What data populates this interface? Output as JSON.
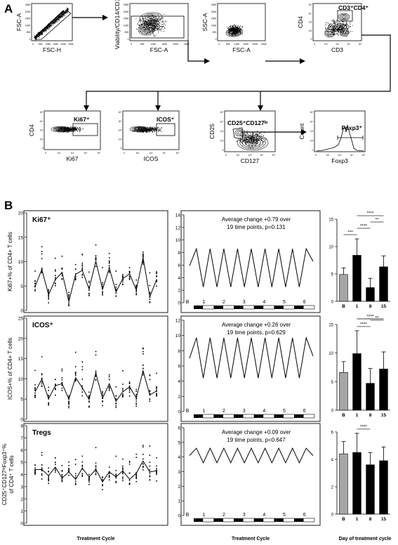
{
  "panel_a": {
    "letter": "A",
    "plots": [
      {
        "xlabel": "FSC-H",
        "ylabel": "FSC-A",
        "gate_label": ""
      },
      {
        "xlabel": "FSC-A",
        "ylabel": "Viability/CD14/CD19",
        "gate_label": ""
      },
      {
        "xlabel": "FSC-A",
        "ylabel": "SSC-A",
        "gate_label": ""
      },
      {
        "xlabel": "CD3",
        "ylabel": "CD4",
        "gate_label": "CD3⁺CD4⁺"
      },
      {
        "xlabel": "Ki67",
        "ylabel": "CD4",
        "gate_label": "Ki67⁺"
      },
      {
        "xlabel": "ICOS",
        "ylabel": "",
        "gate_label": "ICOS⁺"
      },
      {
        "xlabel": "CD127",
        "ylabel": "CD25",
        "gate_label": "CD25⁺CD127ˡᵒ"
      },
      {
        "xlabel": "Foxp3",
        "ylabel": "Count",
        "gate_label": "Foxp3⁺"
      }
    ],
    "tick_lin": [
      "0",
      "50K",
      "100K",
      "150K",
      "200K",
      "250K"
    ],
    "tick_log": [
      "0",
      "10²",
      "10³",
      "10⁴",
      "10⁵"
    ]
  },
  "panel_b": {
    "letter": "B",
    "x_title_scatter": "Treatment Cycle",
    "x_title_model": "Treatment Cycle",
    "x_title_bar": "Day of treatment cycle",
    "cycle_labels": [
      "B",
      "1",
      "2",
      "3",
      "4",
      "5",
      "6"
    ],
    "bar_categories": [
      "B",
      "1",
      "8",
      "15"
    ],
    "colors": {
      "baseline_bar": "#a6a6a6",
      "cycle_bar": "#000000"
    }
  },
  "chart_data": [
    {
      "type": "scatter",
      "title": "Ki67⁺",
      "ylabel": "Ki67+% of CD4+ T cells",
      "ylim": [
        0,
        20
      ],
      "yticks": [
        0,
        5,
        10,
        15,
        20
      ],
      "mean_line": [
        4.9,
        8.4,
        3.2,
        6.3,
        7.8,
        1.8,
        7.4,
        8.2,
        4.4,
        10.1,
        4.3,
        8.7,
        3.8,
        6.5,
        7.5,
        4.2,
        10.8,
        2.8,
        6.3
      ]
    },
    {
      "type": "line",
      "ylim": [
        0,
        14
      ],
      "yticks": [
        0,
        2,
        4,
        6,
        8,
        10,
        12,
        14
      ],
      "annotation": [
        "Average change +0.79 over",
        "19 time points,  p=0.131"
      ],
      "series_values": [
        5.9,
        8.6,
        2.5,
        8.6,
        2.5,
        8.6,
        2.5,
        8.6,
        2.5,
        8.6,
        2.5,
        8.6,
        2.5,
        8.6,
        2.5,
        8.6,
        2.5,
        8.6,
        6.6
      ]
    },
    {
      "type": "bar",
      "categories": [
        "B",
        "1",
        "8",
        "15"
      ],
      "values": [
        4.9,
        8.4,
        2.5,
        6.3
      ],
      "errors": [
        1.2,
        3.0,
        1.7,
        2.0
      ],
      "ylim": [
        0,
        15
      ],
      "yticks": [
        0,
        5,
        10,
        15
      ],
      "significance": [
        [
          "B",
          "1",
          "***"
        ],
        [
          "1",
          "8",
          "****"
        ],
        [
          "8",
          "15",
          "**"
        ],
        [
          "1",
          "15",
          "****"
        ]
      ]
    },
    {
      "type": "scatter",
      "title": "ICOS⁺",
      "ylabel": "ICOS+% of CD4+ T cells",
      "ylim": [
        0,
        25
      ],
      "yticks": [
        0,
        5,
        10,
        15,
        20,
        25
      ],
      "mean_line": [
        6.8,
        9.9,
        5.1,
        8.3,
        8.8,
        5.0,
        10.3,
        7.8,
        4.9,
        11.4,
        5.2,
        8.8,
        4.5,
        6.8,
        8.0,
        5.3,
        12.0,
        6.0,
        7.0
      ]
    },
    {
      "type": "line",
      "ylim": [
        0,
        12
      ],
      "yticks": [
        0,
        2,
        4,
        6,
        8,
        10,
        12
      ],
      "annotation": [
        "Average change +0.26 over",
        "19 time points,  p=0.629"
      ],
      "series_values": [
        7.0,
        9.7,
        4.4,
        9.7,
        4.4,
        9.7,
        4.4,
        9.7,
        4.4,
        9.7,
        4.4,
        9.7,
        4.4,
        9.7,
        4.4,
        9.7,
        4.4,
        9.7,
        7.3
      ]
    },
    {
      "type": "bar",
      "categories": [
        "B",
        "1",
        "8",
        "15"
      ],
      "values": [
        6.6,
        9.9,
        4.7,
        7.2
      ],
      "errors": [
        1.9,
        4.0,
        2.6,
        3.0
      ],
      "ylim": [
        0,
        15
      ],
      "yticks": [
        0,
        5,
        10,
        15
      ],
      "significance": [
        [
          "1",
          "8",
          "****"
        ],
        [
          "8",
          "15",
          "**"
        ],
        [
          "1",
          "15",
          "****"
        ]
      ]
    },
    {
      "type": "scatter",
      "title": "Tregs",
      "ylabel": "CD25⁺CD127ˡᵒFoxp3⁺%",
      "ylabel2": "of CD4⁺ T cells",
      "ylim": [
        0,
        8
      ],
      "yticks": [
        0,
        1,
        2,
        3,
        4,
        5,
        6,
        7,
        8
      ],
      "mean_line": [
        4.4,
        4.4,
        3.9,
        4.6,
        3.7,
        4.2,
        3.6,
        4.5,
        3.8,
        4.4,
        3.4,
        4.2,
        3.8,
        4.3,
        3.6,
        4.1,
        5.1,
        4.2,
        4.3
      ]
    },
    {
      "type": "line",
      "ylim": [
        0,
        6
      ],
      "yticks": [
        0,
        1,
        2,
        3,
        4,
        5,
        6
      ],
      "annotation": [
        "Average change +0.09 over",
        "19 time points,  p=0.647"
      ],
      "series_values": [
        4.1,
        4.6,
        3.6,
        4.6,
        3.6,
        4.6,
        3.6,
        4.6,
        3.6,
        4.6,
        3.6,
        4.6,
        3.6,
        4.6,
        3.6,
        4.6,
        3.6,
        4.6,
        4.1
      ]
    },
    {
      "type": "bar",
      "categories": [
        "B",
        "1",
        "8",
        "15"
      ],
      "values": [
        4.4,
        4.5,
        3.6,
        3.9
      ],
      "errors": [
        0.9,
        1.4,
        0.9,
        1.0
      ],
      "ylim": [
        0,
        6
      ],
      "yticks": [
        0,
        2,
        4,
        6
      ],
      "significance": [
        [
          "1",
          "8",
          "****"
        ]
      ]
    }
  ]
}
